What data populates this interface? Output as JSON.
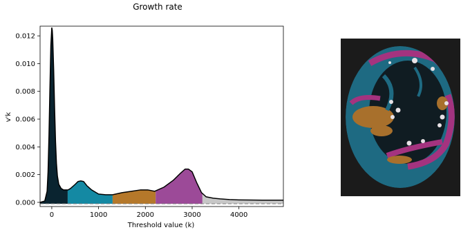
{
  "chart_data": {
    "type": "area",
    "title": "Growth rate",
    "xlabel": "Threshold value (k)",
    "ylabel": "v'k",
    "xlim": [
      -250,
      4950
    ],
    "ylim": [
      -0.0003,
      0.0127
    ],
    "xticks": [
      0,
      1000,
      2000,
      3000,
      4000
    ],
    "xtick_labels": [
      "0",
      "1000",
      "2000",
      "3000",
      "4000"
    ],
    "yticks": [
      0,
      0.002,
      0.004,
      0.006,
      0.008,
      0.01,
      0.012
    ],
    "ytick_labels": [
      "0.000",
      "0.002",
      "0.004",
      "0.006",
      "0.008",
      "0.010",
      "0.012"
    ],
    "grid": false,
    "curve": {
      "color": "#000000",
      "x": [
        -250,
        -150,
        -100,
        -80,
        -60,
        -40,
        -20,
        0,
        10,
        20,
        40,
        60,
        80,
        100,
        120,
        150,
        200,
        250,
        300,
        350,
        400,
        500,
        560,
        620,
        680,
        750,
        850,
        1000,
        1150,
        1300,
        1500,
        1700,
        1900,
        2050,
        2200,
        2400,
        2600,
        2750,
        2850,
        2920,
        3000,
        3100,
        3200,
        3300,
        3450,
        3600,
        3800,
        4000,
        4200,
        4500,
        4950
      ],
      "y": [
        0.0,
        0.0001,
        0.0008,
        0.0022,
        0.0048,
        0.0082,
        0.0113,
        0.0126,
        0.0124,
        0.0118,
        0.0096,
        0.0068,
        0.0044,
        0.0028,
        0.0019,
        0.0013,
        0.001,
        0.0009,
        0.0009,
        0.0009,
        0.001,
        0.0013,
        0.0015,
        0.00155,
        0.0015,
        0.0012,
        0.0009,
        0.0006,
        0.00055,
        0.00055,
        0.0007,
        0.0008,
        0.0009,
        0.0009,
        0.0008,
        0.0011,
        0.0016,
        0.0021,
        0.0024,
        0.0024,
        0.0022,
        0.0014,
        0.0007,
        0.0004,
        0.0003,
        0.00025,
        0.0002,
        0.00018,
        0.00017,
        0.00016,
        0.00016
      ]
    },
    "baseline": {
      "y": -0.0001,
      "style": "dashed",
      "color": "#808080"
    },
    "regions": [
      {
        "from": -250,
        "to": 340,
        "color": "#0a2430"
      },
      {
        "from": 340,
        "to": 1300,
        "color": "#1489a3"
      },
      {
        "from": 1300,
        "to": 2220,
        "color": "#b5782a"
      },
      {
        "from": 2220,
        "to": 3220,
        "color": "#9c4a98"
      },
      {
        "from": 3220,
        "to": 4950,
        "color": "#c7c7c7"
      }
    ]
  },
  "segmentation_image": {
    "description_colors": {
      "background": "#1b1b1b",
      "dark_core": "#101c22",
      "teal": "#1e6a82",
      "amber": "#a8702c",
      "magenta": "#a4337f",
      "highlight": "#e8e2e6"
    }
  }
}
